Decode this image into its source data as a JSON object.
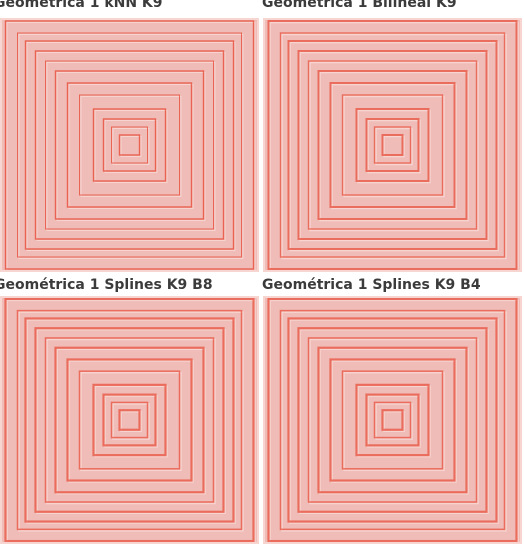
{
  "panels": [
    {
      "title": "Geométrica 1 kNN K9",
      "method": "knn"
    },
    {
      "title": "Geométrica 1 Bilineal K9",
      "method": "bilinear"
    },
    {
      "title": "Geométrica 1 Splines K9 B8",
      "method": "spline"
    },
    {
      "title": "Geométrica 1 Splines K9 B4",
      "method": "spline"
    }
  ],
  "colors": {
    "background": "#efbcb8",
    "line_dark": "#e8523f",
    "line_light": "#f7d6d2"
  }
}
